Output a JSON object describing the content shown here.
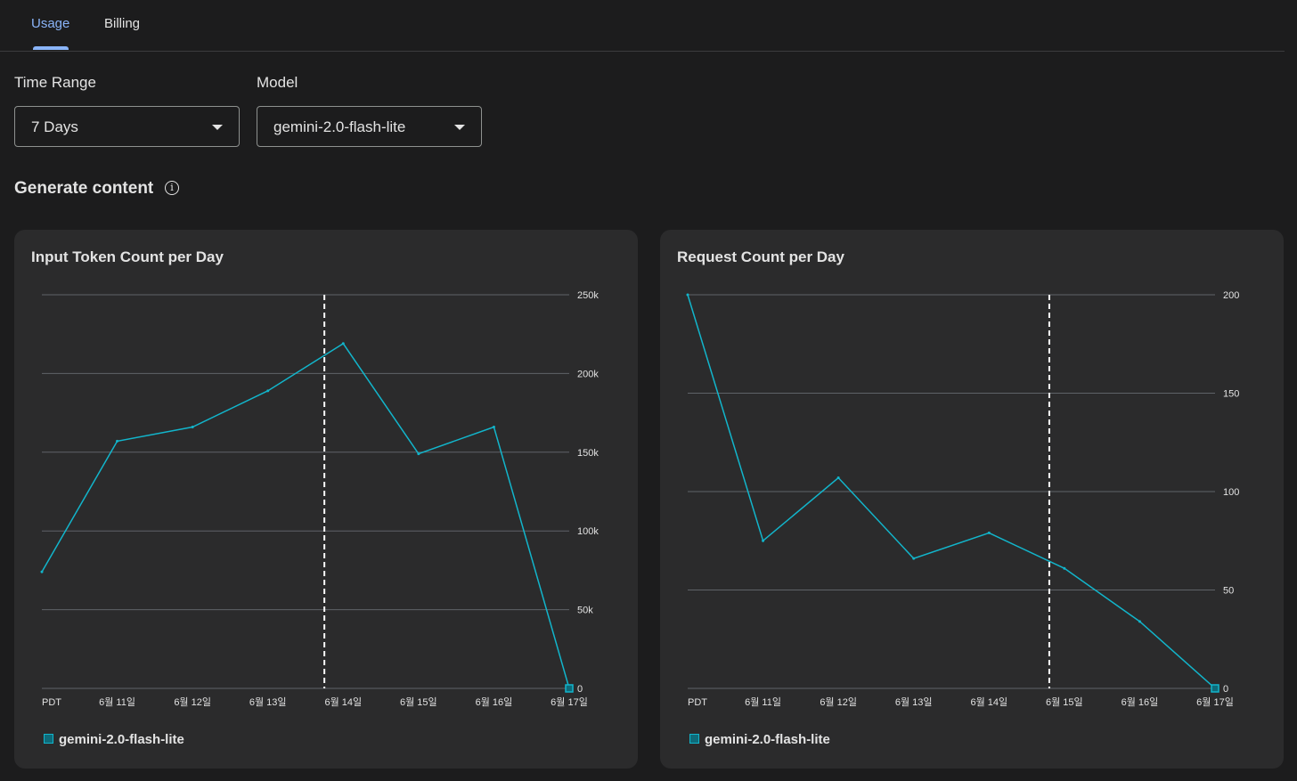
{
  "tabs": [
    {
      "label": "Usage",
      "active": true
    },
    {
      "label": "Billing",
      "active": false
    }
  ],
  "filters": {
    "time_range": {
      "label": "Time Range",
      "value": "7 Days"
    },
    "model": {
      "label": "Model",
      "value": "gemini-2.0-flash-lite"
    }
  },
  "section": {
    "title": "Generate content",
    "icon": "info-icon"
  },
  "colors": {
    "accent": "#8ab4f8",
    "series": "#12b5cb",
    "background": "#1c1c1d",
    "card": "#2b2b2c"
  },
  "chart_data": [
    {
      "type": "line",
      "title": "Input Token Count per Day",
      "categories": [
        "PDT",
        "6월 11일",
        "6월 12일",
        "6월 13일",
        "6월 14일",
        "6월 15일",
        "6월 16일",
        "6월 17일"
      ],
      "yticks": [
        "250k",
        "200k",
        "150k",
        "100k",
        "50k",
        "0"
      ],
      "ylim": [
        0,
        250000
      ],
      "marker_index": 3.75,
      "series": [
        {
          "name": "gemini-2.0-flash-lite",
          "values": [
            74000,
            157000,
            166000,
            189000,
            219000,
            149000,
            166000,
            0
          ]
        }
      ],
      "legend": "bottom-left",
      "grid": true
    },
    {
      "type": "line",
      "title": "Request Count per Day",
      "categories": [
        "PDT",
        "6월 11일",
        "6월 12일",
        "6월 13일",
        "6월 14일",
        "6월 15일",
        "6월 16일",
        "6월 17일"
      ],
      "yticks": [
        "200",
        "150",
        "100",
        "50",
        "0"
      ],
      "ylim": [
        0,
        200
      ],
      "marker_index": 4.8,
      "series": [
        {
          "name": "gemini-2.0-flash-lite",
          "values": [
            200,
            75,
            107,
            66,
            79,
            61,
            34,
            0
          ]
        }
      ],
      "legend": "bottom-left",
      "grid": true
    }
  ]
}
